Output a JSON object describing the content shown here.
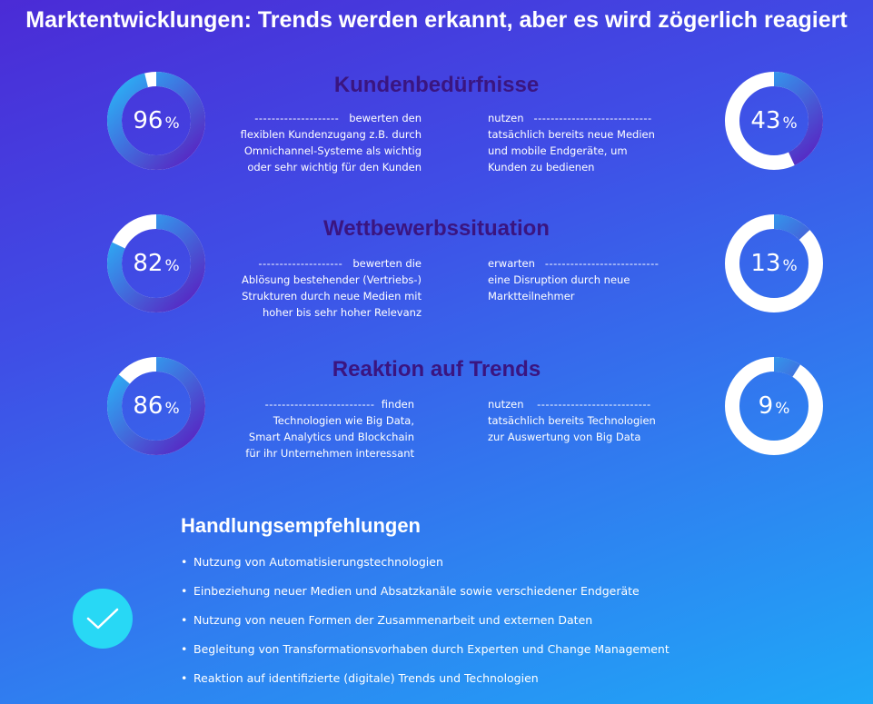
{
  "title": "Marktentwicklungen: Trends werden erkannt, aber es wird zögerlich reagiert",
  "colors": {
    "ring_light": "#2ab4f7",
    "ring_dark": "#5a1fc0",
    "ring_empty": "#ffffff",
    "section_title": "#3a1580",
    "check_bg": "#28d8f5"
  },
  "sections": [
    {
      "title": "Kundenbedürfnisse",
      "left": {
        "value": 96,
        "num": "96",
        "unit": "%",
        "dashes": "--------------------",
        "lines": [
          "bewerten den",
          "flexiblen Kundenzugang z.B. durch",
          "Omnichannel-Systeme als wichtig",
          "oder sehr wichtig für den Kunden"
        ]
      },
      "right": {
        "value": 43,
        "num": "43",
        "unit": "%",
        "dashes": "----------------------------",
        "lines": [
          "nutzen",
          "tatsächlich bereits neue Medien",
          "und mobile Endgeräte, um",
          "Kunden zu bedienen"
        ]
      }
    },
    {
      "title": "Wettbewerbssituation",
      "left": {
        "value": 82,
        "num": "82",
        "unit": "%",
        "dashes": "--------------------",
        "lines": [
          "bewerten die",
          "Ablösung bestehender (Vertriebs-)",
          "Strukturen durch neue Medien mit",
          "hoher bis sehr hoher Relevanz"
        ]
      },
      "right": {
        "value": 13,
        "num": "13",
        "unit": "%",
        "dashes": "---------------------------",
        "lines": [
          "erwarten",
          "eine Disruption durch neue",
          "Marktteilnehmer"
        ]
      }
    },
    {
      "title": "Reaktion auf Trends",
      "left": {
        "value": 86,
        "num": "86",
        "unit": "%",
        "dashes": "--------------------------",
        "lines": [
          "finden",
          "Technologien wie Big Data,",
          "Smart Analytics und Blockchain",
          "für ihr Unternehmen interessant"
        ]
      },
      "right": {
        "value": 9,
        "num": "9",
        "unit": "%",
        "dashes": "---------------------------",
        "lines": [
          "nutzen",
          "tatsächlich bereits Technologien",
          "zur Auswertung von Big Data"
        ]
      }
    }
  ],
  "recommendations": {
    "title": "Handlungsempfehlungen",
    "bullet": "•",
    "items": [
      "Nutzung von Automatisierungstechnologien",
      "Einbeziehung neuer Medien und Absatzkanäle sowie verschiedener Endgeräte",
      "Nutzung von neuen Formen der Zusammenarbeit und externen Daten",
      "Begleitung von Transformationsvorhaben durch Experten und Change Management",
      "Reaktion auf identifizierte (digitale) Trends und Technologien"
    ],
    "icon": "checkmark-icon"
  }
}
